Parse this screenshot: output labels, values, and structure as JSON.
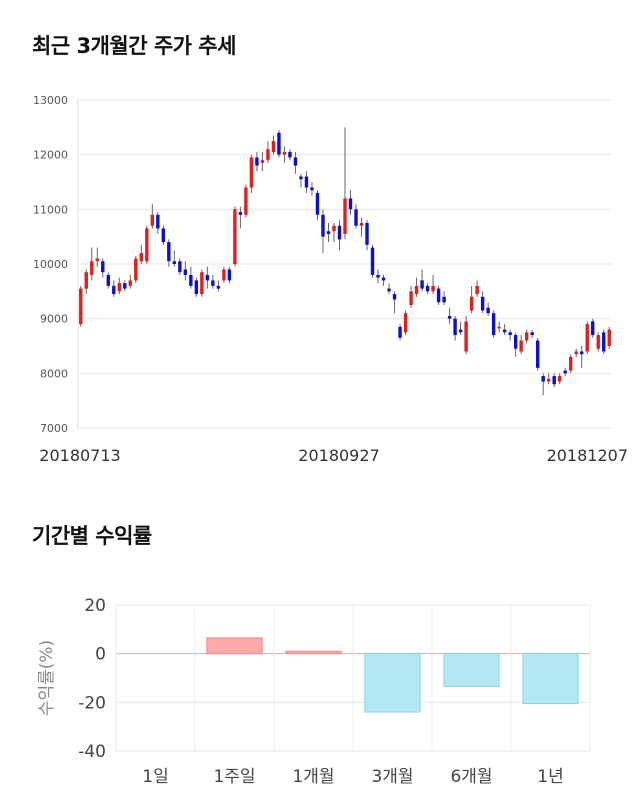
{
  "sections": {
    "price_title": "최근 3개월간 주가 추세",
    "return_title": "기간별 수익률"
  },
  "colors": {
    "up": "#e02020",
    "down": "#1010c8",
    "positive_bar": "#ffaaaa",
    "negative_bar": "#b3e8f2"
  },
  "chart_data": [
    {
      "type": "candlestick",
      "title": "",
      "xlabel": "",
      "ylabel": "",
      "ylim": [
        7000,
        13000
      ],
      "yticks": [
        7000,
        8000,
        9000,
        10000,
        11000,
        12000,
        13000
      ],
      "xtick_labels": [
        "20180713",
        "20180927",
        "20181207"
      ],
      "grid": true,
      "candles": [
        {
          "o": 8900,
          "c": 9550,
          "h": 9600,
          "l": 8850
        },
        {
          "o": 9550,
          "c": 9850,
          "h": 9900,
          "l": 9450
        },
        {
          "o": 9800,
          "c": 10050,
          "h": 10300,
          "l": 9700
        },
        {
          "o": 10050,
          "c": 10100,
          "h": 10300,
          "l": 9950
        },
        {
          "o": 10050,
          "c": 9850,
          "h": 10100,
          "l": 9750
        },
        {
          "o": 9800,
          "c": 9600,
          "h": 9850,
          "l": 9550
        },
        {
          "o": 9600,
          "c": 9450,
          "h": 9700,
          "l": 9400
        },
        {
          "o": 9500,
          "c": 9650,
          "h": 9750,
          "l": 9450
        },
        {
          "o": 9650,
          "c": 9550,
          "h": 9700,
          "l": 9500
        },
        {
          "o": 9600,
          "c": 9700,
          "h": 9800,
          "l": 9550
        },
        {
          "o": 9700,
          "c": 10100,
          "h": 10150,
          "l": 9650
        },
        {
          "o": 10050,
          "c": 10200,
          "h": 10350,
          "l": 10000
        },
        {
          "o": 10050,
          "c": 10650,
          "h": 10700,
          "l": 10000
        },
        {
          "o": 10700,
          "c": 10900,
          "h": 11100,
          "l": 10650
        },
        {
          "o": 10900,
          "c": 10650,
          "h": 10950,
          "l": 10550
        },
        {
          "o": 10650,
          "c": 10400,
          "h": 10700,
          "l": 10350
        },
        {
          "o": 10400,
          "c": 10050,
          "h": 10450,
          "l": 9950
        },
        {
          "o": 10050,
          "c": 10000,
          "h": 10250,
          "l": 9950
        },
        {
          "o": 10050,
          "c": 9850,
          "h": 10100,
          "l": 9800
        },
        {
          "o": 9900,
          "c": 9800,
          "h": 10050,
          "l": 9700
        },
        {
          "o": 9800,
          "c": 9600,
          "h": 9950,
          "l": 9550
        },
        {
          "o": 9700,
          "c": 9450,
          "h": 9750,
          "l": 9400
        },
        {
          "o": 9450,
          "c": 9850,
          "h": 9900,
          "l": 9400
        },
        {
          "o": 9800,
          "c": 9700,
          "h": 9950,
          "l": 9550
        },
        {
          "o": 9700,
          "c": 9600,
          "h": 9800,
          "l": 9550
        },
        {
          "o": 9600,
          "c": 9550,
          "h": 9700,
          "l": 9500
        },
        {
          "o": 9700,
          "c": 9900,
          "h": 9950,
          "l": 9650
        },
        {
          "o": 9900,
          "c": 9700,
          "h": 9950,
          "l": 9650
        },
        {
          "o": 10000,
          "c": 11000,
          "h": 11050,
          "l": 9950
        },
        {
          "o": 10950,
          "c": 10900,
          "h": 11050,
          "l": 10650
        },
        {
          "o": 10900,
          "c": 11400,
          "h": 11450,
          "l": 10850
        },
        {
          "o": 11400,
          "c": 11950,
          "h": 12000,
          "l": 11300
        },
        {
          "o": 11950,
          "c": 11800,
          "h": 12050,
          "l": 11700
        },
        {
          "o": 11850,
          "c": 11900,
          "h": 12050,
          "l": 11700
        },
        {
          "o": 11900,
          "c": 12100,
          "h": 12250,
          "l": 11850
        },
        {
          "o": 12050,
          "c": 12250,
          "h": 12350,
          "l": 12000
        },
        {
          "o": 12400,
          "c": 12000,
          "h": 12450,
          "l": 11950
        },
        {
          "o": 12000,
          "c": 12050,
          "h": 12150,
          "l": 11850
        },
        {
          "o": 12050,
          "c": 11950,
          "h": 12100,
          "l": 11900
        },
        {
          "o": 11950,
          "c": 11800,
          "h": 12050,
          "l": 11650
        },
        {
          "o": 11600,
          "c": 11550,
          "h": 11650,
          "l": 11400
        },
        {
          "o": 11600,
          "c": 11400,
          "h": 11700,
          "l": 11300
        },
        {
          "o": 11400,
          "c": 11350,
          "h": 11500,
          "l": 11250
        },
        {
          "o": 11300,
          "c": 10900,
          "h": 11350,
          "l": 10800
        },
        {
          "o": 10900,
          "c": 10500,
          "h": 11000,
          "l": 10200
        },
        {
          "o": 10600,
          "c": 10550,
          "h": 10750,
          "l": 10400
        },
        {
          "o": 10600,
          "c": 10700,
          "h": 10750,
          "l": 10400
        },
        {
          "o": 10700,
          "c": 10450,
          "h": 10800,
          "l": 10250
        },
        {
          "o": 10550,
          "c": 11200,
          "h": 12500,
          "l": 10450
        },
        {
          "o": 11200,
          "c": 11000,
          "h": 11350,
          "l": 10900
        },
        {
          "o": 11000,
          "c": 10700,
          "h": 11100,
          "l": 10650
        },
        {
          "o": 10700,
          "c": 10750,
          "h": 10850,
          "l": 10500
        },
        {
          "o": 10750,
          "c": 10350,
          "h": 10800,
          "l": 10250
        },
        {
          "o": 10300,
          "c": 9800,
          "h": 10350,
          "l": 9750
        },
        {
          "o": 9800,
          "c": 9750,
          "h": 9900,
          "l": 9650
        },
        {
          "o": 9750,
          "c": 9700,
          "h": 9800,
          "l": 9600
        },
        {
          "o": 9550,
          "c": 9500,
          "h": 9650,
          "l": 9450
        },
        {
          "o": 9450,
          "c": 9350,
          "h": 9500,
          "l": 9100
        },
        {
          "o": 8850,
          "c": 8650,
          "h": 8900,
          "l": 8600
        },
        {
          "o": 8750,
          "c": 9100,
          "h": 9150,
          "l": 8700
        },
        {
          "o": 9250,
          "c": 9500,
          "h": 9600,
          "l": 9200
        },
        {
          "o": 9450,
          "c": 9600,
          "h": 9750,
          "l": 9400
        },
        {
          "o": 9700,
          "c": 9550,
          "h": 9900,
          "l": 9500
        },
        {
          "o": 9600,
          "c": 9500,
          "h": 9650,
          "l": 9450
        },
        {
          "o": 9500,
          "c": 9600,
          "h": 9800,
          "l": 9450
        },
        {
          "o": 9550,
          "c": 9300,
          "h": 9600,
          "l": 9250
        },
        {
          "o": 9400,
          "c": 9300,
          "h": 9500,
          "l": 9250
        },
        {
          "o": 9050,
          "c": 9000,
          "h": 9200,
          "l": 8900
        },
        {
          "o": 9000,
          "c": 8700,
          "h": 9050,
          "l": 8600
        },
        {
          "o": 8800,
          "c": 8750,
          "h": 8950,
          "l": 8700
        },
        {
          "o": 8400,
          "c": 8950,
          "h": 9050,
          "l": 8350
        },
        {
          "o": 9150,
          "c": 9400,
          "h": 9600,
          "l": 9100
        },
        {
          "o": 9450,
          "c": 9600,
          "h": 9700,
          "l": 9400
        },
        {
          "o": 9400,
          "c": 9150,
          "h": 9500,
          "l": 9100
        },
        {
          "o": 9200,
          "c": 9100,
          "h": 9300,
          "l": 9050
        },
        {
          "o": 9100,
          "c": 8700,
          "h": 9150,
          "l": 8650
        },
        {
          "o": 8850,
          "c": 8850,
          "h": 8950,
          "l": 8750
        },
        {
          "o": 8800,
          "c": 8750,
          "h": 8900,
          "l": 8700
        },
        {
          "o": 8750,
          "c": 8700,
          "h": 8800,
          "l": 8600
        },
        {
          "o": 8700,
          "c": 8450,
          "h": 8750,
          "l": 8300
        },
        {
          "o": 8400,
          "c": 8600,
          "h": 8700,
          "l": 8350
        },
        {
          "o": 8600,
          "c": 8750,
          "h": 8800,
          "l": 8550
        },
        {
          "o": 8750,
          "c": 8700,
          "h": 8800,
          "l": 8650
        },
        {
          "o": 8600,
          "c": 8100,
          "h": 8650,
          "l": 8050
        },
        {
          "o": 7950,
          "c": 7850,
          "h": 8000,
          "l": 7600
        },
        {
          "o": 7850,
          "c": 7900,
          "h": 8000,
          "l": 7800
        },
        {
          "o": 7950,
          "c": 7800,
          "h": 8000,
          "l": 7750
        },
        {
          "o": 7850,
          "c": 7950,
          "h": 8000,
          "l": 7800
        },
        {
          "o": 8050,
          "c": 8000,
          "h": 8100,
          "l": 7950
        },
        {
          "o": 8050,
          "c": 8300,
          "h": 8350,
          "l": 8000
        },
        {
          "o": 8350,
          "c": 8400,
          "h": 8450,
          "l": 8300
        },
        {
          "o": 8400,
          "c": 8350,
          "h": 8500,
          "l": 8100
        },
        {
          "o": 8400,
          "c": 8900,
          "h": 8950,
          "l": 8350
        },
        {
          "o": 8950,
          "c": 8700,
          "h": 9000,
          "l": 8650
        },
        {
          "o": 8450,
          "c": 8700,
          "h": 8750,
          "l": 8400
        },
        {
          "o": 8750,
          "c": 8400,
          "h": 8800,
          "l": 8350
        },
        {
          "o": 8500,
          "c": 8800,
          "h": 8850,
          "l": 8450
        }
      ]
    },
    {
      "type": "bar",
      "title": "",
      "xlabel": "",
      "ylabel": "수익률(%)",
      "ylim": [
        -40,
        20
      ],
      "yticks": [
        -40,
        -20,
        0,
        20
      ],
      "categories": [
        "1일",
        "1주일",
        "1개월",
        "3개월",
        "6개월",
        "1년"
      ],
      "values": [
        0,
        6.5,
        1.0,
        -24.0,
        -13.5,
        -20.5
      ],
      "grid": true
    }
  ]
}
